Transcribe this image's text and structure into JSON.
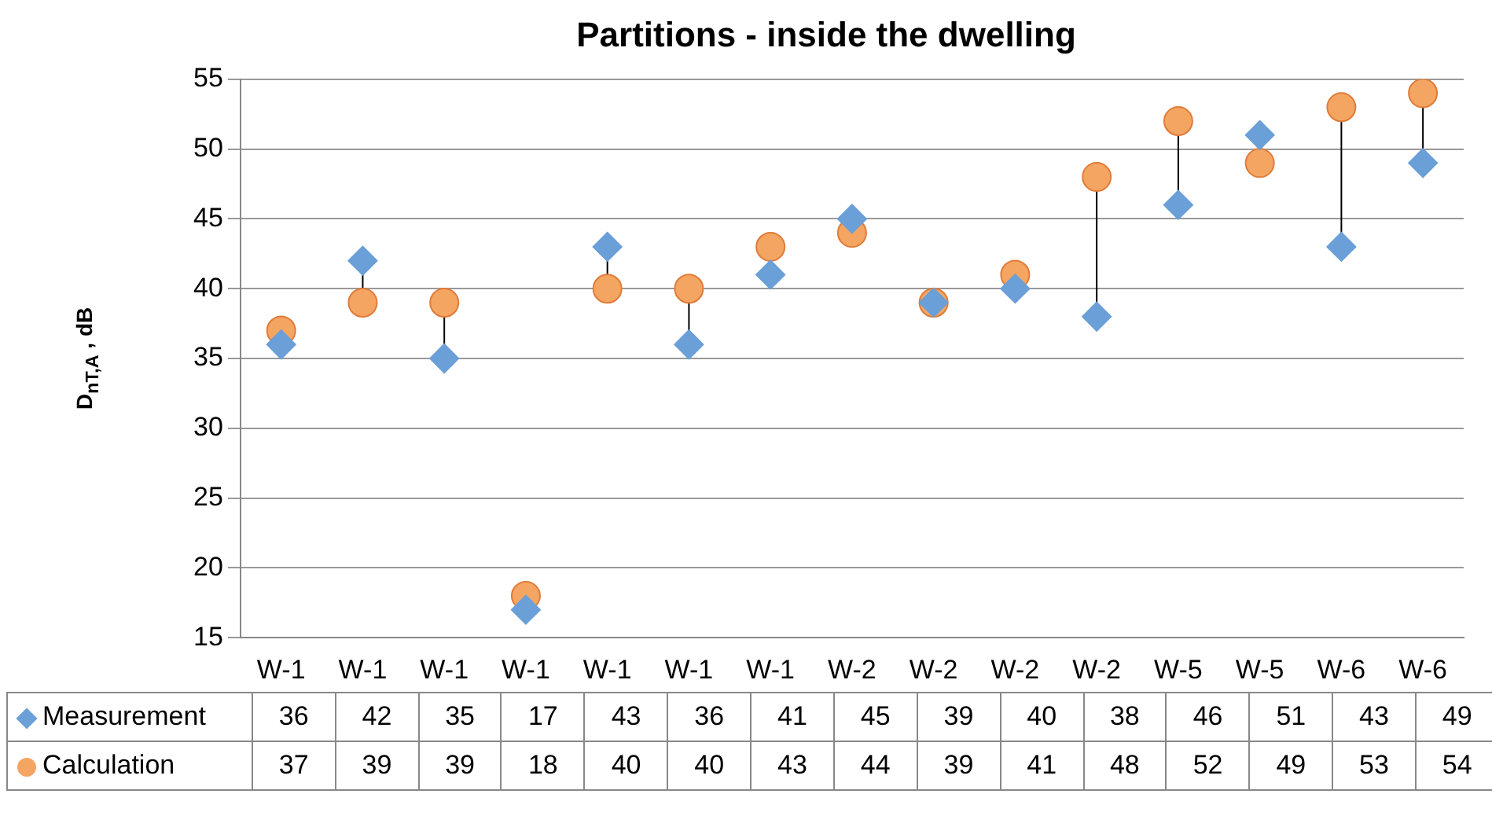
{
  "chart_data": {
    "type": "scatter",
    "title": "Partitions - inside the dwelling",
    "ylabel": "D$_{nT,A}$ , dB",
    "categories": [
      "W-1",
      "W-1",
      "W-1",
      "W-1",
      "W-1",
      "W-1",
      "W-1",
      "W-2",
      "W-2",
      "W-2",
      "W-2",
      "W-5",
      "W-5",
      "W-6",
      "W-6"
    ],
    "series": [
      {
        "name": "Measurement",
        "color": "#6a9fd8",
        "marker": "diamond",
        "values": [
          36,
          42,
          35,
          17,
          43,
          36,
          41,
          45,
          39,
          40,
          38,
          46,
          51,
          43,
          49
        ]
      },
      {
        "name": "Calculation",
        "color": "#f5a562",
        "marker": "circle",
        "values": [
          37,
          39,
          39,
          18,
          40,
          40,
          43,
          44,
          39,
          41,
          48,
          52,
          49,
          53,
          54
        ]
      }
    ],
    "ylim": [
      15,
      55
    ],
    "yticks": [
      15,
      20,
      25,
      30,
      35,
      40,
      45,
      50,
      55
    ],
    "grid": "y",
    "legend": "bottom",
    "data_labels": true
  }
}
